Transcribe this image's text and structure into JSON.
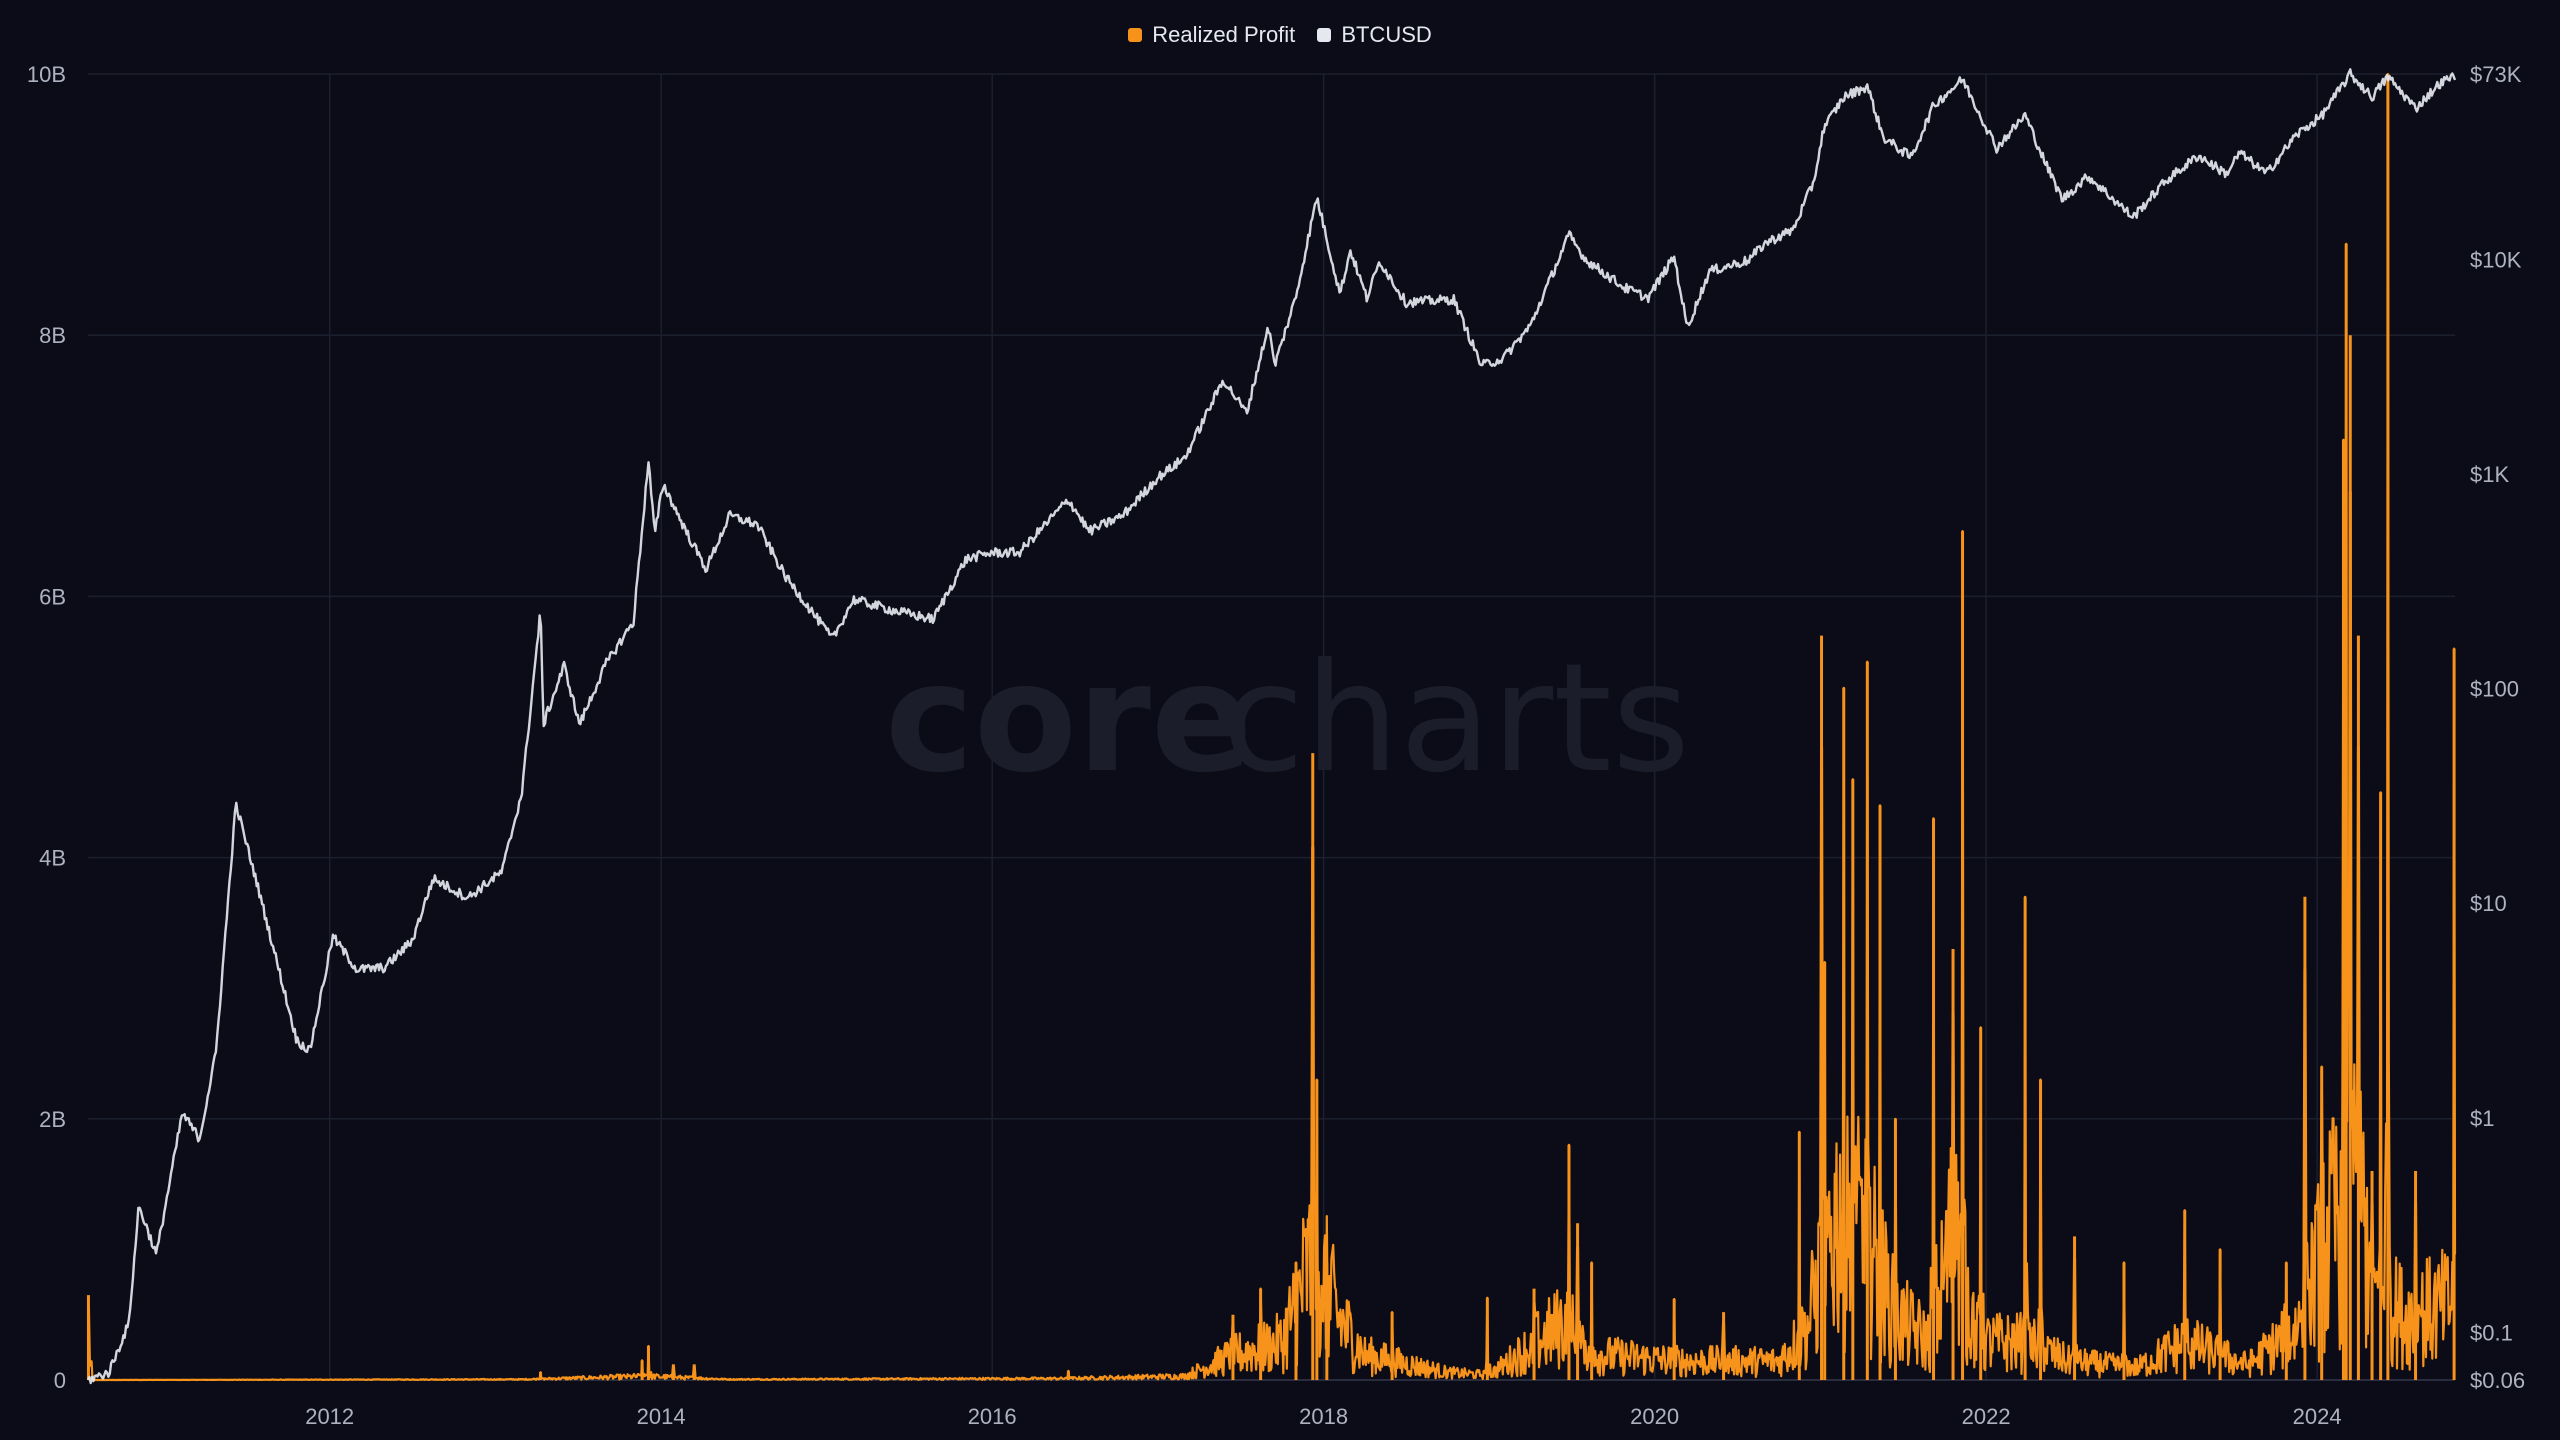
{
  "legend": {
    "items": [
      {
        "label": "Realized Profit",
        "color": "#f7931a"
      },
      {
        "label": "BTCUSD",
        "color": "#e6e8ef"
      }
    ]
  },
  "watermark": {
    "part1": "core",
    "part2": "charts"
  },
  "chart_data": {
    "type": "line",
    "title": "",
    "grid": true,
    "legend_position": "top-center",
    "x_axis": {
      "type": "date",
      "range": [
        "2010-07-17",
        "2024-10-31"
      ],
      "ticks": [
        "2012",
        "2014",
        "2016",
        "2018",
        "2020",
        "2022",
        "2024"
      ]
    },
    "y_axis_left": {
      "series": "Realized Profit",
      "range": [
        0,
        10000000000
      ],
      "ticks": [
        "0",
        "2B",
        "4B",
        "6B",
        "8B",
        "10B"
      ]
    },
    "y_axis_right": {
      "series": "BTCUSD",
      "scale": "log",
      "range": [
        0.06,
        73000
      ],
      "ticks": [
        "$0.06",
        "$0.1",
        "$1",
        "$10",
        "$100",
        "$1K",
        "$10K",
        "$73K"
      ]
    },
    "series": [
      {
        "name": "BTCUSD",
        "axis": "right",
        "color": "#e6e8ef",
        "points": [
          [
            "2010-07-17",
            0.06
          ],
          [
            "2010-09-01",
            0.065
          ],
          [
            "2010-10-15",
            0.11
          ],
          [
            "2010-11-06",
            0.39
          ],
          [
            "2010-12-15",
            0.23
          ],
          [
            "2011-02-10",
            1.05
          ],
          [
            "2011-03-20",
            0.8
          ],
          [
            "2011-04-25",
            2.0
          ],
          [
            "2011-06-08",
            29
          ],
          [
            "2011-07-20",
            13.5
          ],
          [
            "2011-09-10",
            5.0
          ],
          [
            "2011-10-20",
            2.3
          ],
          [
            "2011-11-18",
            2.05
          ],
          [
            "2012-01-08",
            7.0
          ],
          [
            "2012-03-01",
            4.9
          ],
          [
            "2012-05-01",
            5.0
          ],
          [
            "2012-07-01",
            6.7
          ],
          [
            "2012-08-16",
            13
          ],
          [
            "2012-11-01",
            10.6
          ],
          [
            "2013-01-15",
            14
          ],
          [
            "2013-02-28",
            33
          ],
          [
            "2013-04-10",
            230
          ],
          [
            "2013-04-16",
            68
          ],
          [
            "2013-06-01",
            128
          ],
          [
            "2013-07-05",
            68
          ],
          [
            "2013-09-01",
            130
          ],
          [
            "2013-11-01",
            205
          ],
          [
            "2013-12-04",
            1150
          ],
          [
            "2013-12-18",
            520
          ],
          [
            "2014-01-05",
            900
          ],
          [
            "2014-02-25",
            540
          ],
          [
            "2014-04-10",
            360
          ],
          [
            "2014-06-01",
            640
          ],
          [
            "2014-08-01",
            580
          ],
          [
            "2014-10-01",
            335
          ],
          [
            "2015-01-14",
            170
          ],
          [
            "2015-03-01",
            260
          ],
          [
            "2015-06-01",
            230
          ],
          [
            "2015-08-24",
            210
          ],
          [
            "2015-11-04",
            400
          ],
          [
            "2015-12-31",
            430
          ],
          [
            "2016-03-01",
            430
          ],
          [
            "2016-06-17",
            760
          ],
          [
            "2016-08-02",
            540
          ],
          [
            "2016-10-15",
            640
          ],
          [
            "2016-12-31",
            960
          ],
          [
            "2017-03-01",
            1190
          ],
          [
            "2017-05-25",
            2750
          ],
          [
            "2017-07-15",
            1920
          ],
          [
            "2017-09-01",
            4900
          ],
          [
            "2017-09-15",
            3200
          ],
          [
            "2017-11-01",
            6700
          ],
          [
            "2017-12-17",
            19500
          ],
          [
            "2018-02-06",
            6900
          ],
          [
            "2018-03-01",
            11000
          ],
          [
            "2018-04-06",
            6600
          ],
          [
            "2018-05-05",
            9800
          ],
          [
            "2018-07-01",
            6300
          ],
          [
            "2018-10-15",
            6500
          ],
          [
            "2018-12-15",
            3200
          ],
          [
            "2019-02-01",
            3450
          ],
          [
            "2019-04-02",
            4900
          ],
          [
            "2019-06-26",
            13000
          ],
          [
            "2019-08-01",
            10000
          ],
          [
            "2019-10-25",
            7400
          ],
          [
            "2019-12-17",
            6600
          ],
          [
            "2020-02-13",
            10300
          ],
          [
            "2020-03-13",
            4800
          ],
          [
            "2020-05-01",
            8800
          ],
          [
            "2020-07-26",
            9900
          ],
          [
            "2020-09-01",
            11900
          ],
          [
            "2020-11-01",
            13700
          ],
          [
            "2020-12-17",
            23000
          ],
          [
            "2021-01-08",
            41000
          ],
          [
            "2021-02-21",
            57000
          ],
          [
            "2021-04-14",
            64000
          ],
          [
            "2021-05-19",
            37000
          ],
          [
            "2021-07-20",
            29800
          ],
          [
            "2021-09-07",
            52000
          ],
          [
            "2021-11-10",
            69000
          ],
          [
            "2022-01-24",
            33000
          ],
          [
            "2022-03-28",
            47000
          ],
          [
            "2022-05-12",
            28000
          ],
          [
            "2022-06-18",
            19000
          ],
          [
            "2022-08-14",
            24400
          ],
          [
            "2022-11-21",
            15700
          ],
          [
            "2023-01-31",
            23100
          ],
          [
            "2023-04-14",
            30400
          ],
          [
            "2023-06-15",
            25000
          ],
          [
            "2023-07-14",
            31400
          ],
          [
            "2023-09-11",
            25000
          ],
          [
            "2023-11-15",
            37800
          ],
          [
            "2024-01-11",
            46600
          ],
          [
            "2024-03-14",
            73000
          ],
          [
            "2024-05-01",
            57000
          ],
          [
            "2024-06-05",
            71000
          ],
          [
            "2024-08-05",
            50500
          ],
          [
            "2024-09-27",
            65800
          ],
          [
            "2024-10-31",
            72000
          ]
        ]
      },
      {
        "name": "Realized Profit",
        "axis": "left",
        "color": "#f7931a",
        "baseline": [
          [
            "2010-07-17",
            0
          ],
          [
            "2013-03-01",
            5000000
          ],
          [
            "2013-12-01",
            30000000
          ],
          [
            "2014-06-01",
            5000000
          ],
          [
            "2016-06-01",
            12000000
          ],
          [
            "2017-03-01",
            30000000
          ],
          [
            "2017-06-15",
            200000000
          ],
          [
            "2017-10-01",
            300000000
          ],
          [
            "2017-12-10",
            1000000000
          ],
          [
            "2018-02-01",
            500000000
          ],
          [
            "2018-04-01",
            200000000
          ],
          [
            "2018-10-01",
            60000000
          ],
          [
            "2019-01-01",
            40000000
          ],
          [
            "2019-06-15",
            450000000
          ],
          [
            "2019-09-01",
            200000000
          ],
          [
            "2020-03-01",
            150000000
          ],
          [
            "2020-10-01",
            150000000
          ],
          [
            "2020-12-01",
            400000000
          ],
          [
            "2021-02-01",
            1300000000
          ],
          [
            "2021-04-15",
            1100000000
          ],
          [
            "2021-06-15",
            500000000
          ],
          [
            "2021-09-01",
            300000000
          ],
          [
            "2021-10-20",
            1200000000
          ],
          [
            "2021-12-15",
            300000000
          ],
          [
            "2022-04-01",
            300000000
          ],
          [
            "2022-07-01",
            150000000
          ],
          [
            "2022-12-01",
            100000000
          ],
          [
            "2023-03-15",
            300000000
          ],
          [
            "2023-08-01",
            120000000
          ],
          [
            "2023-11-15",
            400000000
          ],
          [
            "2024-02-15",
            1300000000
          ],
          [
            "2024-03-15",
            2200000000
          ],
          [
            "2024-05-01",
            700000000
          ],
          [
            "2024-07-15",
            500000000
          ],
          [
            "2024-10-31",
            600000000
          ]
        ],
        "spikes": [
          [
            "2010-07-18",
            650000000
          ],
          [
            "2013-04-10",
            60000000
          ],
          [
            "2013-11-20",
            150000000
          ],
          [
            "2013-12-04",
            260000000
          ],
          [
            "2014-01-28",
            120000000
          ],
          [
            "2014-03-15",
            120000000
          ],
          [
            "2016-06-17",
            70000000
          ],
          [
            "2017-06-15",
            500000000
          ],
          [
            "2017-08-15",
            700000000
          ],
          [
            "2017-11-01",
            900000000
          ],
          [
            "2017-12-08",
            4800000000
          ],
          [
            "2017-12-17",
            2300000000
          ],
          [
            "2018-01-08",
            900000000
          ],
          [
            "2018-06-01",
            520000000
          ],
          [
            "2018-12-28",
            630000000
          ],
          [
            "2019-04-10",
            700000000
          ],
          [
            "2019-06-26",
            1800000000
          ],
          [
            "2019-07-15",
            1200000000
          ],
          [
            "2019-08-15",
            900000000
          ],
          [
            "2020-02-13",
            620000000
          ],
          [
            "2020-06-01",
            520000000
          ],
          [
            "2020-11-15",
            1900000000
          ],
          [
            "2021-01-03",
            5700000000
          ],
          [
            "2021-01-10",
            3200000000
          ],
          [
            "2021-02-21",
            5300000000
          ],
          [
            "2021-03-13",
            4600000000
          ],
          [
            "2021-04-14",
            5500000000
          ],
          [
            "2021-05-12",
            4400000000
          ],
          [
            "2021-06-15",
            2000000000
          ],
          [
            "2021-09-07",
            4300000000
          ],
          [
            "2021-10-20",
            3300000000
          ],
          [
            "2021-11-10",
            6500000000
          ],
          [
            "2021-12-20",
            2700000000
          ],
          [
            "2022-03-28",
            3700000000
          ],
          [
            "2022-05-01",
            2300000000
          ],
          [
            "2022-07-15",
            1100000000
          ],
          [
            "2022-11-01",
            900000000
          ],
          [
            "2023-03-15",
            1300000000
          ],
          [
            "2023-06-01",
            1000000000
          ],
          [
            "2023-10-25",
            900000000
          ],
          [
            "2023-12-05",
            3700000000
          ],
          [
            "2024-01-11",
            2400000000
          ],
          [
            "2024-02-28",
            7200000000
          ],
          [
            "2024-03-05",
            8700000000
          ],
          [
            "2024-03-14",
            8000000000
          ],
          [
            "2024-04-01",
            5700000000
          ],
          [
            "2024-05-01",
            1600000000
          ],
          [
            "2024-05-20",
            4500000000
          ],
          [
            "2024-06-05",
            10000000000
          ],
          [
            "2024-08-05",
            1600000000
          ],
          [
            "2024-10-29",
            5600000000
          ]
        ]
      }
    ]
  }
}
